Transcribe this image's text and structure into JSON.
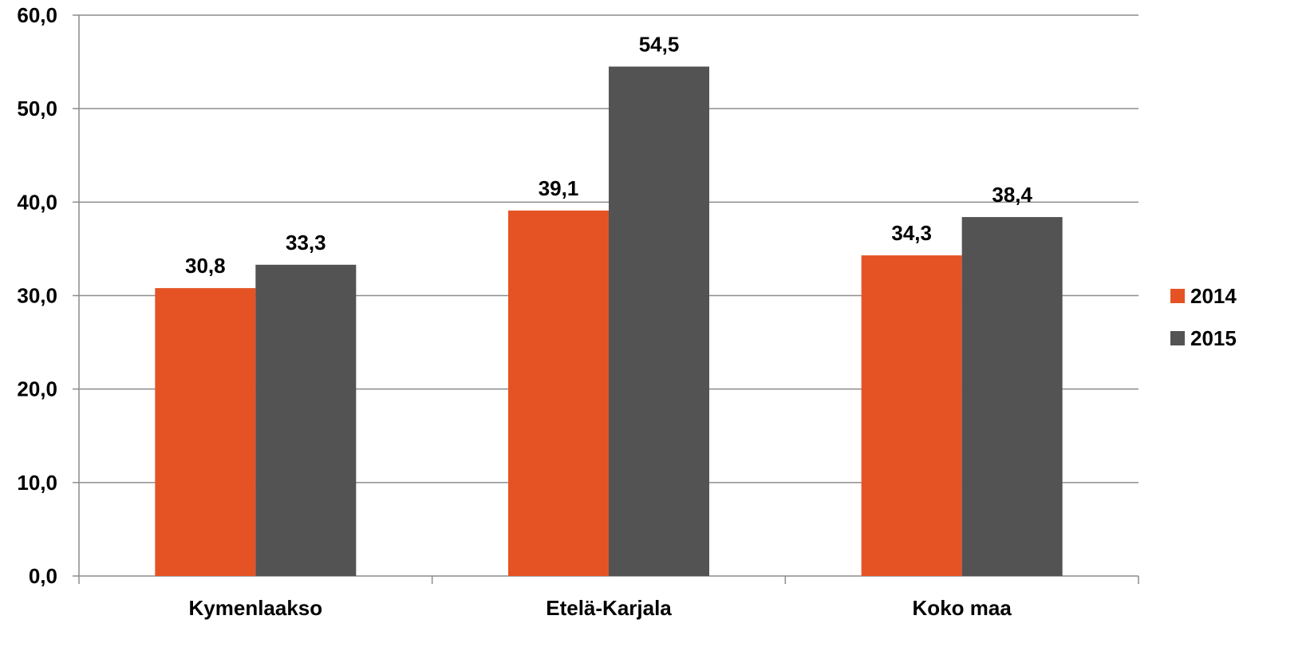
{
  "chart_data": {
    "type": "bar",
    "categories": [
      "Kymenlaakso",
      "Etelä-Karjala",
      "Koko maa"
    ],
    "series": [
      {
        "name": "2014",
        "values": [
          30.8,
          39.1,
          34.3
        ],
        "labels": [
          "30,8",
          "39,1",
          "34,3"
        ],
        "color": "#e55325"
      },
      {
        "name": "2015",
        "values": [
          33.3,
          54.5,
          38.4
        ],
        "labels": [
          "33,3",
          "54,5",
          "38,4"
        ],
        "color": "#535353"
      }
    ],
    "yticks": [
      "0,0",
      "10,0",
      "20,0",
      "30,0",
      "40,0",
      "50,0",
      "60,0"
    ],
    "ylim": [
      0,
      60
    ],
    "ystep": 10,
    "grid": true,
    "legend_position": "right",
    "title": "",
    "xlabel": "",
    "ylabel": ""
  }
}
